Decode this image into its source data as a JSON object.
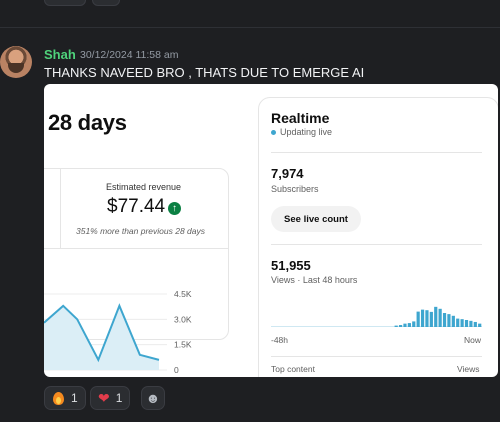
{
  "message": {
    "username": "Shah",
    "timestamp": "30/12/2024 11:58 am",
    "text": "THANKS NAVEED BRO , THATS DUE TO EMERGE AI"
  },
  "screenshot": {
    "period_title": "28 days",
    "revenue": {
      "label": "Estimated revenue",
      "value": "$77.44",
      "comparison": "351% more than previous 28 days"
    },
    "chart_data": {
      "type": "area",
      "title": "",
      "y_ticks": [
        "4.5K",
        "3.0K",
        "1.5K",
        "0"
      ],
      "ylim": [
        0,
        4500
      ],
      "values": [
        2800,
        3800,
        3000,
        600,
        3800,
        900,
        600
      ]
    },
    "realtime": {
      "title": "Realtime",
      "status": "Updating live",
      "subscribers": "7,974",
      "subscribers_label": "Subscribers",
      "button_label": "See live count",
      "views": "51,955",
      "views_label": "Views · Last 48 hours",
      "axis_start": "-48h",
      "axis_end": "Now",
      "top_content_label": "Top content",
      "views_column_label": "Views",
      "bars": [
        0,
        0,
        0,
        0,
        0,
        0,
        0,
        0,
        0,
        0,
        0,
        0,
        0,
        0,
        0,
        0,
        0,
        0,
        0,
        0,
        0,
        0,
        0,
        0,
        0,
        0,
        0,
        0,
        0.05,
        0.07,
        0.12,
        0.14,
        0.2,
        0.55,
        0.62,
        0.6,
        0.54,
        0.72,
        0.65,
        0.5,
        0.46,
        0.4,
        0.3,
        0.28,
        0.25,
        0.22,
        0.18,
        0.12
      ]
    }
  },
  "reactions": [
    {
      "emoji": "fire-heart",
      "count": "1"
    },
    {
      "emoji": "red-heart",
      "count": "1"
    }
  ],
  "colors": {
    "background": "#1e1f22",
    "username": "#4fd27b",
    "accent_blue": "#3ea6cf",
    "growth_green": "#0b8043"
  }
}
